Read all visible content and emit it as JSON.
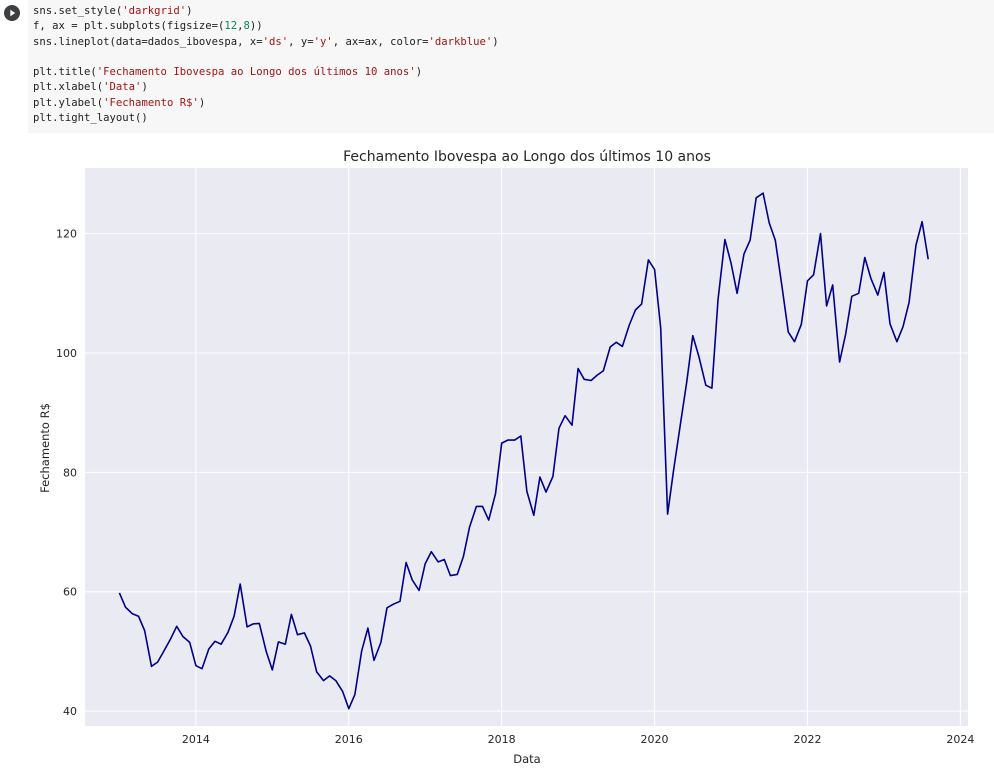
{
  "cell": {
    "run_button_label": "run-cell",
    "code_lines": [
      [
        {
          "t": "sns.set_style("
        },
        {
          "t": "'darkgrid'",
          "c": "s"
        },
        {
          "t": ")"
        }
      ],
      [
        {
          "t": "f, ax = plt.subplots(figsize=("
        },
        {
          "t": "12",
          "c": "n"
        },
        {
          "t": ","
        },
        {
          "t": "8",
          "c": "n"
        },
        {
          "t": "))"
        }
      ],
      [
        {
          "t": "sns.lineplot(data=dados_ibovespa, x="
        },
        {
          "t": "'ds'",
          "c": "s"
        },
        {
          "t": ", y="
        },
        {
          "t": "'y'",
          "c": "s"
        },
        {
          "t": ", ax=ax, color="
        },
        {
          "t": "'darkblue'",
          "c": "s"
        },
        {
          "t": ")"
        }
      ],
      [],
      [
        {
          "t": "plt.title("
        },
        {
          "t": "'Fechamento Ibovespa ao Longo dos últimos 10 anos'",
          "c": "s"
        },
        {
          "t": ")"
        }
      ],
      [
        {
          "t": "plt.xlabel("
        },
        {
          "t": "'Data'",
          "c": "s"
        },
        {
          "t": ")"
        }
      ],
      [
        {
          "t": "plt.ylabel("
        },
        {
          "t": "'Fechamento R$'",
          "c": "s"
        },
        {
          "t": ")"
        }
      ],
      [
        {
          "t": "plt.tight_layout()"
        }
      ]
    ]
  },
  "chart_data": {
    "type": "line",
    "title": "Fechamento Ibovespa ao Longo dos últimos 10 anos",
    "xlabel": "Data",
    "ylabel": "Fechamento R$",
    "line_color": "#00008b",
    "grid": true,
    "background": "#eaeaf2",
    "xlim": [
      2012.55,
      2024.1
    ],
    "ylim": [
      37.5,
      131
    ],
    "xticks": [
      2014,
      2016,
      2018,
      2020,
      2022,
      2024
    ],
    "yticks": [
      40,
      60,
      80,
      100,
      120
    ],
    "series": [
      {
        "x": [
          2013.0,
          2013.08,
          2013.17,
          2013.25,
          2013.33,
          2013.42,
          2013.5,
          2013.58,
          2013.67,
          2013.75,
          2013.83,
          2013.92,
          2014.0,
          2014.08,
          2014.17,
          2014.25,
          2014.33,
          2014.42,
          2014.5,
          2014.58,
          2014.67,
          2014.75,
          2014.83,
          2014.92,
          2015.0,
          2015.08,
          2015.17,
          2015.25,
          2015.33,
          2015.42,
          2015.5,
          2015.58,
          2015.67,
          2015.75,
          2015.83,
          2015.92,
          2016.0,
          2016.08,
          2016.17,
          2016.25,
          2016.33,
          2016.42,
          2016.5,
          2016.58,
          2016.67,
          2016.75,
          2016.83,
          2016.92,
          2017.0,
          2017.08,
          2017.17,
          2017.25,
          2017.33,
          2017.42,
          2017.5,
          2017.58,
          2017.67,
          2017.75,
          2017.83,
          2017.92,
          2018.0,
          2018.08,
          2018.17,
          2018.25,
          2018.33,
          2018.42,
          2018.5,
          2018.58,
          2018.67,
          2018.75,
          2018.83,
          2018.92,
          2019.0,
          2019.08,
          2019.17,
          2019.25,
          2019.33,
          2019.42,
          2019.5,
          2019.58,
          2019.67,
          2019.75,
          2019.83,
          2019.92,
          2020.0,
          2020.08,
          2020.17,
          2020.25,
          2020.33,
          2020.42,
          2020.5,
          2020.58,
          2020.67,
          2020.75,
          2020.83,
          2020.92,
          2021.0,
          2021.08,
          2021.17,
          2021.25,
          2021.33,
          2021.42,
          2021.5,
          2021.58,
          2021.67,
          2021.75,
          2021.83,
          2021.92,
          2022.0,
          2022.08,
          2022.17,
          2022.25,
          2022.33,
          2022.42,
          2022.5,
          2022.58,
          2022.67,
          2022.75,
          2022.83,
          2022.92,
          2023.0,
          2023.08,
          2023.17,
          2023.25,
          2023.33,
          2023.42,
          2023.5,
          2023.58
        ],
        "y": [
          59.8,
          57.4,
          56.3,
          55.9,
          53.5,
          47.5,
          48.2,
          50.0,
          52.1,
          54.2,
          52.5,
          51.5,
          47.6,
          47.1,
          50.4,
          51.7,
          51.2,
          53.2,
          55.9,
          61.3,
          54.1,
          54.6,
          54.7,
          50.0,
          46.9,
          51.6,
          51.2,
          56.2,
          52.8,
          53.1,
          50.9,
          46.6,
          45.1,
          45.9,
          45.1,
          43.3,
          40.4,
          42.8,
          50.1,
          53.9,
          48.5,
          51.5,
          57.3,
          57.9,
          58.4,
          64.9,
          62.0,
          60.2,
          64.7,
          66.7,
          65.0,
          65.4,
          62.7,
          62.9,
          65.9,
          70.8,
          74.3,
          74.3,
          72.0,
          76.4,
          84.9,
          85.4,
          85.4,
          86.1,
          76.8,
          72.8,
          79.2,
          76.7,
          79.3,
          87.4,
          89.5,
          87.9,
          97.4,
          95.6,
          95.4,
          96.3,
          97.0,
          101.0,
          101.8,
          101.1,
          104.7,
          107.2,
          108.2,
          115.6,
          114.0,
          104.2,
          73.0,
          80.5,
          87.4,
          95.1,
          102.9,
          99.4,
          94.6,
          94.1,
          108.9,
          119.0,
          115.1,
          110.0,
          116.6,
          118.9,
          126.0,
          126.8,
          121.8,
          118.9,
          110.9,
          103.5,
          101.9,
          104.8,
          112.1,
          113.1,
          120.0,
          107.9,
          111.4,
          98.5,
          103.2,
          109.5,
          110.0,
          116.0,
          112.5,
          109.7,
          113.5,
          104.9,
          101.9,
          104.4,
          108.5,
          118.1,
          122.0,
          115.7
        ]
      }
    ]
  }
}
